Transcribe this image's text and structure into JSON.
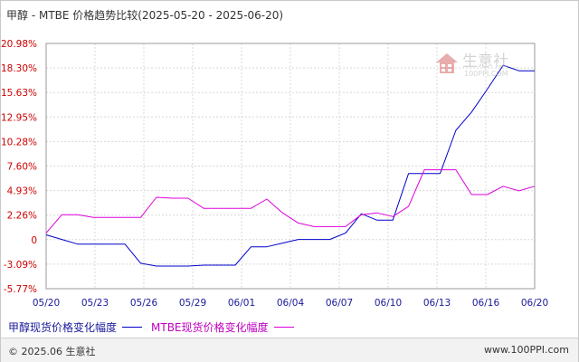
{
  "chart_data": {
    "type": "line",
    "title": "甲醇 - MTBE 价格趋势比较(2025-05-20 - 2025-06-20)",
    "xlabel": "",
    "ylabel": "",
    "x_ticks": [
      "05/20",
      "05/23",
      "05/26",
      "05/29",
      "06/01",
      "06/04",
      "06/07",
      "06/10",
      "06/13",
      "06/16",
      "06/20"
    ],
    "y_ticks": [
      "20.98%",
      "18.30%",
      "15.63%",
      "12.95%",
      "10.28%",
      "7.60%",
      "4.93%",
      "2.26%",
      "0",
      "-3.09%",
      "-5.77%"
    ],
    "ylim": [
      -5.77,
      20.98
    ],
    "grid": true,
    "legend_position": "bottom-left",
    "dates": [
      "05/20",
      "05/21",
      "05/22",
      "05/23",
      "05/24",
      "05/25",
      "05/26",
      "05/27",
      "05/28",
      "05/29",
      "05/30",
      "05/31",
      "06/01",
      "06/02",
      "06/03",
      "06/04",
      "06/05",
      "06/06",
      "06/07",
      "06/08",
      "06/09",
      "06/10",
      "06/11",
      "06/12",
      "06/13",
      "06/14",
      "06/15",
      "06/16",
      "06/17",
      "06/18",
      "06/19",
      "06/20"
    ],
    "series": [
      {
        "name": "甲醇现货价格变化幅度",
        "color": "#0000cc",
        "values": [
          0.1,
          -0.4,
          -0.9,
          -0.9,
          -0.9,
          -0.9,
          -3.0,
          -3.3,
          -3.3,
          -3.3,
          -3.2,
          -3.2,
          -3.2,
          -1.2,
          -1.2,
          -0.8,
          -0.4,
          -0.4,
          -0.4,
          0.3,
          2.4,
          1.7,
          1.7,
          6.8,
          6.8,
          6.8,
          11.5,
          13.5,
          16.0,
          18.6,
          18.0,
          18.0
        ]
      },
      {
        "name": "MTBE现货价格变化幅度",
        "color": "#dd00dd",
        "values": [
          0.3,
          2.3,
          2.3,
          2.0,
          2.0,
          2.0,
          2.0,
          4.2,
          4.1,
          4.1,
          3.0,
          3.0,
          3.0,
          3.0,
          4.0,
          2.5,
          1.4,
          1.0,
          1.0,
          1.0,
          2.3,
          2.5,
          2.1,
          3.2,
          7.2,
          7.2,
          7.2,
          4.5,
          4.5,
          5.4,
          4.9,
          5.4
        ]
      }
    ]
  },
  "legend": {
    "item1": "甲醇现货价格变化幅度",
    "item2": "MTBE现货价格变化幅度"
  },
  "footer": {
    "copyright": "© 2025.06 生意社",
    "site": "www.100PPI.com"
  },
  "watermark": {
    "brand": "生意社",
    "url": "100PPI.COM"
  }
}
